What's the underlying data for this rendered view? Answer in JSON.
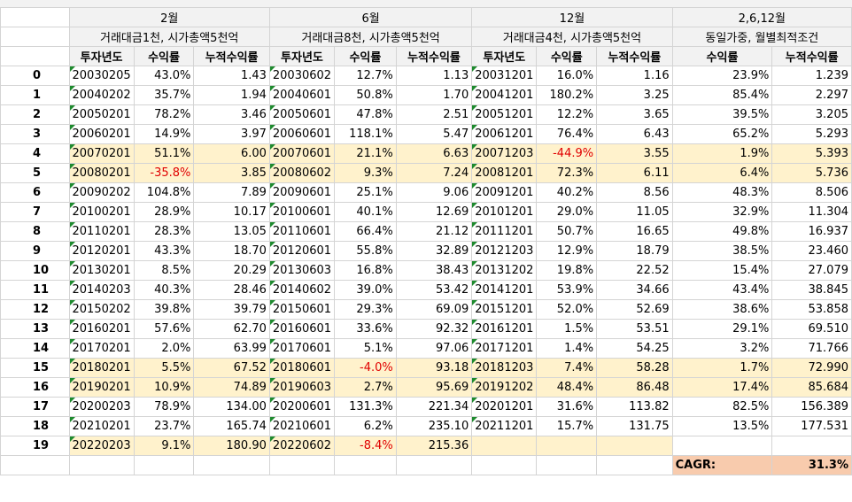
{
  "groups": [
    {
      "month": "2월",
      "desc": "거래대금1천, 시가총액5천억"
    },
    {
      "month": "6월",
      "desc": "거래대금8천, 시가총액5천억"
    },
    {
      "month": "12월",
      "desc": "거래대금4천, 시가총액5천억"
    },
    {
      "month": "2,6,12월",
      "desc": "동일가중, 월별최적조건"
    }
  ],
  "col_headers": {
    "year": "투자년도",
    "ret": "수익률",
    "cum": "누적수익률"
  },
  "rows": [
    {
      "idx": "0",
      "a": [
        "20030205",
        "43.0%",
        "1.43"
      ],
      "b": [
        "20030602",
        "12.7%",
        "1.13"
      ],
      "c": [
        "20031201",
        "16.0%",
        "1.16"
      ],
      "d": [
        "23.9%",
        "1.239"
      ]
    },
    {
      "idx": "1",
      "a": [
        "20040202",
        "35.7%",
        "1.94"
      ],
      "b": [
        "20040601",
        "50.8%",
        "1.70"
      ],
      "c": [
        "20041201",
        "180.2%",
        "3.25"
      ],
      "d": [
        "85.4%",
        "2.297"
      ]
    },
    {
      "idx": "2",
      "a": [
        "20050201",
        "78.2%",
        "3.46"
      ],
      "b": [
        "20050601",
        "47.8%",
        "2.51"
      ],
      "c": [
        "20051201",
        "12.2%",
        "3.65"
      ],
      "d": [
        "39.5%",
        "3.205"
      ]
    },
    {
      "idx": "3",
      "a": [
        "20060201",
        "14.9%",
        "3.97"
      ],
      "b": [
        "20060601",
        "118.1%",
        "5.47"
      ],
      "c": [
        "20061201",
        "76.4%",
        "6.43"
      ],
      "d": [
        "65.2%",
        "5.293"
      ]
    },
    {
      "idx": "4",
      "a": [
        "20070201",
        "51.1%",
        "6.00"
      ],
      "b": [
        "20070601",
        "21.1%",
        "6.63"
      ],
      "c": [
        "20071203",
        "-44.9%",
        "3.55"
      ],
      "d": [
        "1.9%",
        "5.393"
      ]
    },
    {
      "idx": "5",
      "a": [
        "20080201",
        "-35.8%",
        "3.85"
      ],
      "b": [
        "20080602",
        "9.3%",
        "7.24"
      ],
      "c": [
        "20081201",
        "72.3%",
        "6.11"
      ],
      "d": [
        "6.4%",
        "5.736"
      ]
    },
    {
      "idx": "6",
      "a": [
        "20090202",
        "104.8%",
        "7.89"
      ],
      "b": [
        "20090601",
        "25.1%",
        "9.06"
      ],
      "c": [
        "20091201",
        "40.2%",
        "8.56"
      ],
      "d": [
        "48.3%",
        "8.506"
      ]
    },
    {
      "idx": "7",
      "a": [
        "20100201",
        "28.9%",
        "10.17"
      ],
      "b": [
        "20100601",
        "40.1%",
        "12.69"
      ],
      "c": [
        "20101201",
        "29.0%",
        "11.05"
      ],
      "d": [
        "32.9%",
        "11.304"
      ]
    },
    {
      "idx": "8",
      "a": [
        "20110201",
        "28.3%",
        "13.05"
      ],
      "b": [
        "20110601",
        "66.4%",
        "21.12"
      ],
      "c": [
        "20111201",
        "50.7%",
        "16.65"
      ],
      "d": [
        "49.8%",
        "16.937"
      ]
    },
    {
      "idx": "9",
      "a": [
        "20120201",
        "43.3%",
        "18.70"
      ],
      "b": [
        "20120601",
        "55.8%",
        "32.89"
      ],
      "c": [
        "20121203",
        "12.9%",
        "18.79"
      ],
      "d": [
        "38.5%",
        "23.460"
      ]
    },
    {
      "idx": "10",
      "a": [
        "20130201",
        "8.5%",
        "20.29"
      ],
      "b": [
        "20130603",
        "16.8%",
        "38.43"
      ],
      "c": [
        "20131202",
        "19.8%",
        "22.52"
      ],
      "d": [
        "15.4%",
        "27.079"
      ]
    },
    {
      "idx": "11",
      "a": [
        "20140203",
        "40.3%",
        "28.46"
      ],
      "b": [
        "20140602",
        "39.0%",
        "53.42"
      ],
      "c": [
        "20141201",
        "53.9%",
        "34.66"
      ],
      "d": [
        "43.4%",
        "38.845"
      ]
    },
    {
      "idx": "12",
      "a": [
        "20150202",
        "39.8%",
        "39.79"
      ],
      "b": [
        "20150601",
        "29.3%",
        "69.09"
      ],
      "c": [
        "20151201",
        "52.0%",
        "52.69"
      ],
      "d": [
        "38.6%",
        "53.858"
      ]
    },
    {
      "idx": "13",
      "a": [
        "20160201",
        "57.6%",
        "62.70"
      ],
      "b": [
        "20160601",
        "33.6%",
        "92.32"
      ],
      "c": [
        "20161201",
        "1.5%",
        "53.51"
      ],
      "d": [
        "29.1%",
        "69.510"
      ]
    },
    {
      "idx": "14",
      "a": [
        "20170201",
        "2.0%",
        "63.99"
      ],
      "b": [
        "20170601",
        "5.1%",
        "97.06"
      ],
      "c": [
        "20171201",
        "1.4%",
        "54.25"
      ],
      "d": [
        "3.2%",
        "71.766"
      ]
    },
    {
      "idx": "15",
      "a": [
        "20180201",
        "5.5%",
        "67.52"
      ],
      "b": [
        "20180601",
        "-4.0%",
        "93.18"
      ],
      "c": [
        "20181203",
        "7.4%",
        "58.28"
      ],
      "d": [
        "1.7%",
        "72.990"
      ]
    },
    {
      "idx": "16",
      "a": [
        "20190201",
        "10.9%",
        "74.89"
      ],
      "b": [
        "20190603",
        "2.7%",
        "95.69"
      ],
      "c": [
        "20191202",
        "48.4%",
        "86.48"
      ],
      "d": [
        "17.4%",
        "85.684"
      ]
    },
    {
      "idx": "17",
      "a": [
        "20200203",
        "78.9%",
        "134.00"
      ],
      "b": [
        "20200601",
        "131.3%",
        "221.34"
      ],
      "c": [
        "20201201",
        "31.6%",
        "113.82"
      ],
      "d": [
        "82.5%",
        "156.389"
      ]
    },
    {
      "idx": "18",
      "a": [
        "20210201",
        "23.7%",
        "165.74"
      ],
      "b": [
        "20210601",
        "6.2%",
        "235.10"
      ],
      "c": [
        "20211201",
        "15.7%",
        "131.75"
      ],
      "d": [
        "13.5%",
        "177.531"
      ]
    },
    {
      "idx": "19",
      "a": [
        "20220203",
        "9.1%",
        "180.90"
      ],
      "b": [
        "20220602",
        "-8.4%",
        "215.36"
      ],
      "c": [
        "",
        "",
        ""
      ],
      "d": [
        "",
        ""
      ]
    }
  ],
  "highlight_rows": [
    "4",
    "5",
    "15",
    "16"
  ],
  "cagr": {
    "label": "CAGR:",
    "value": "31.3%"
  },
  "colors": {
    "highlight": "#fff2cc",
    "negative": "#e00000",
    "header": "#f2f2f2",
    "cagr": "#f8cbad",
    "comment_marker": "#1e8a2e"
  }
}
